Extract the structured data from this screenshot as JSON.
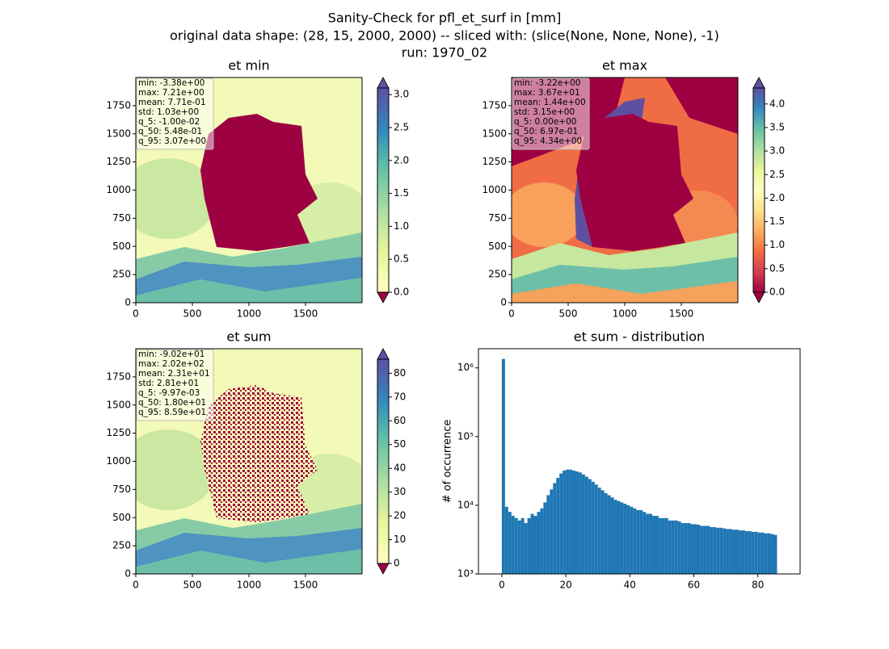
{
  "suptitle": [
    "Sanity-Check for pfl_et_surf in [mm]",
    "original data shape: (28, 15, 2000, 2000) -- sliced with: (slice(None, None, None), -1)",
    "run: 1970_02"
  ],
  "chart_data": [
    {
      "type": "heatmap",
      "title": "et min",
      "xlim": [
        0,
        2000
      ],
      "ylim": [
        0,
        2000
      ],
      "xticks": [
        0,
        500,
        1000,
        1500
      ],
      "yticks": [
        0,
        250,
        500,
        750,
        1000,
        1250,
        1500,
        1750
      ],
      "clim": [
        0,
        3.1
      ],
      "cticks": [
        {
          "value": 0,
          "label": "0.0"
        },
        0.5,
        {
          "value": 1,
          "label": "1.0"
        },
        1.5,
        {
          "value": 2,
          "label": "2.0"
        },
        2.5,
        {
          "value": 3,
          "label": "3.0"
        }
      ],
      "stats": [
        "min: -3.38e+00",
        "max: 7.21e+00",
        "mean: 7.71e-01",
        "std: 1.03e+00",
        "q_5: -1.00e-02",
        "q_50: 5.48e-01",
        "q_95: 3.07e+00"
      ]
    },
    {
      "type": "heatmap",
      "title": "et max",
      "xlim": [
        0,
        2000
      ],
      "ylim": [
        0,
        2000
      ],
      "xticks": [
        0,
        500,
        1000,
        1500
      ],
      "yticks": [
        0,
        250,
        500,
        750,
        1000,
        1250,
        1500,
        1750
      ],
      "clim": [
        0,
        4.34
      ],
      "cticks": [
        {
          "value": 0,
          "label": "0.0"
        },
        0.5,
        {
          "value": 1,
          "label": "1.0"
        },
        1.5,
        {
          "value": 2,
          "label": "2.0"
        },
        2.5,
        {
          "value": 3,
          "label": "3.0"
        },
        3.5,
        {
          "value": 4,
          "label": "4.0"
        }
      ],
      "stats": [
        "min: -3.22e+00",
        "max: 3.67e+01",
        "mean: 1.44e+00",
        "std: 3.15e+00",
        "q_5: 0.00e+00",
        "q_50: 6.97e-01",
        "q_95: 4.34e+00"
      ]
    },
    {
      "type": "heatmap",
      "title": "et sum",
      "xlim": [
        0,
        2000
      ],
      "ylim": [
        0,
        2000
      ],
      "xticks": [
        0,
        500,
        1000,
        1500
      ],
      "yticks": [
        0,
        250,
        500,
        750,
        1000,
        1250,
        1500,
        1750
      ],
      "clim": [
        0,
        85.9
      ],
      "cticks": [
        0,
        10,
        20,
        30,
        40,
        50,
        60,
        70,
        80
      ],
      "stats": [
        "min: -9.02e+01",
        "max: 2.02e+02",
        "mean: 2.31e+01",
        "std: 2.81e+01",
        "q_5: -9.97e-03",
        "q_50: 1.80e+01",
        "q_95: 8.59e+01"
      ]
    },
    {
      "type": "histogram",
      "title": "et sum - distribution",
      "ylabel": "# of occurrence",
      "color": "#1f77b4",
      "yscale": "log",
      "xlim": [
        -7.3,
        93.2
      ],
      "xticks": [
        0,
        20,
        40,
        60,
        80
      ],
      "ylim": [
        1000,
        1900000
      ],
      "yticks": [
        {
          "value": 1000,
          "label": "10³"
        },
        {
          "value": 10000,
          "label": "10⁴"
        },
        {
          "value": 100000,
          "label": "10⁵"
        },
        {
          "value": 1000000,
          "label": "10⁶"
        }
      ],
      "bins": [
        0,
        1,
        2,
        3,
        4,
        5,
        6,
        7,
        8,
        9,
        10,
        11,
        12,
        13,
        14,
        15,
        16,
        17,
        18,
        19,
        20,
        21,
        22,
        23,
        24,
        25,
        26,
        27,
        28,
        29,
        30,
        31,
        32,
        33,
        34,
        35,
        36,
        37,
        38,
        39,
        40,
        41,
        42,
        43,
        44,
        45,
        46,
        47,
        48,
        49,
        50,
        51,
        52,
        53,
        54,
        55,
        56,
        57,
        58,
        59,
        60,
        61,
        62,
        63,
        64,
        65,
        66,
        67,
        68,
        69,
        70,
        71,
        72,
        73,
        74,
        75,
        76,
        77,
        78,
        79,
        80,
        81,
        82,
        83,
        84,
        85,
        86
      ],
      "values": [
        1350000,
        9500,
        8000,
        7000,
        6500,
        6000,
        6500,
        5500,
        6500,
        7500,
        7000,
        8000,
        9000,
        11000,
        14000,
        17000,
        21000,
        25000,
        29000,
        32000,
        33000,
        33000,
        32000,
        31000,
        30000,
        28000,
        26000,
        24000,
        22000,
        20000,
        18000,
        16500,
        15000,
        14000,
        13000,
        12000,
        11500,
        11000,
        10500,
        10000,
        9500,
        9000,
        8500,
        8500,
        8000,
        7500,
        7500,
        7000,
        7000,
        6500,
        6500,
        6500,
        6000,
        6000,
        6000,
        5800,
        5500,
        5500,
        5500,
        5300,
        5300,
        5200,
        5000,
        5000,
        5000,
        4800,
        4800,
        4700,
        4700,
        4600,
        4500,
        4500,
        4400,
        4400,
        4300,
        4300,
        4200,
        4200,
        4100,
        4100,
        4000,
        4000,
        3900,
        3900,
        3800,
        3700
      ]
    }
  ]
}
